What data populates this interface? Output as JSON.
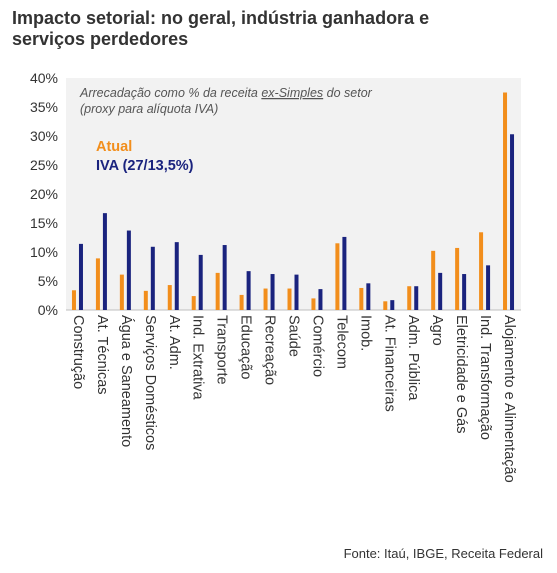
{
  "title_line1": "Impacto setorial: no geral, indústria ganhadora e",
  "title_line2": "serviços perdedores",
  "source": "Fonte: Itaú, IBGE, Receita Federal",
  "colors": {
    "atual": "#f28e1c",
    "iva": "#1a237e",
    "plot_bg": "#f2f2f2",
    "grid": "#cccccc"
  },
  "chart_data": {
    "type": "bar",
    "title": "Impacto setorial: no geral, indústria ganhadora e serviços perdedores",
    "note_line1": "Arrecadação como % da receita ex-Simples do setor",
    "note_line2": "(proxy para alíquota IVA)",
    "ylim": [
      0,
      40
    ],
    "yticks": [
      0,
      5,
      10,
      15,
      20,
      25,
      30,
      35,
      40
    ],
    "ytick_labels": [
      "0%",
      "5%",
      "10%",
      "15%",
      "20%",
      "25%",
      "30%",
      "35%",
      "40%"
    ],
    "categories": [
      "Construção",
      "At. Técnicas",
      "Água e Saneamento",
      "Serviços Domésticos",
      "At. Adm.",
      "Ind. Extrativa",
      "Transporte",
      "Educação",
      "Recreação",
      "Saúde",
      "Comércio",
      "Telecom",
      "Imob.",
      "At. Financeiras",
      "Adm. Pública",
      "Agro",
      "Eletricidade e Gás",
      "Ind. Transformação",
      "Alojamento e Alimentação"
    ],
    "series": [
      {
        "name": "Atual",
        "color": "#f28e1c",
        "values": [
          3.4,
          8.9,
          6.1,
          3.3,
          4.3,
          2.4,
          6.4,
          2.6,
          3.7,
          3.7,
          2.0,
          11.5,
          3.8,
          1.5,
          4.1,
          10.2,
          10.7,
          13.4,
          37.5
        ]
      },
      {
        "name": "IVA (27/13,5%)",
        "color": "#1a237e",
        "values": [
          11.4,
          16.7,
          13.7,
          10.9,
          11.7,
          9.5,
          11.2,
          6.7,
          6.2,
          6.1,
          3.6,
          12.6,
          4.6,
          1.7,
          4.1,
          6.4,
          6.2,
          7.7,
          30.3
        ]
      }
    ],
    "grid": false,
    "legend_placement": "top-left inside plot"
  }
}
